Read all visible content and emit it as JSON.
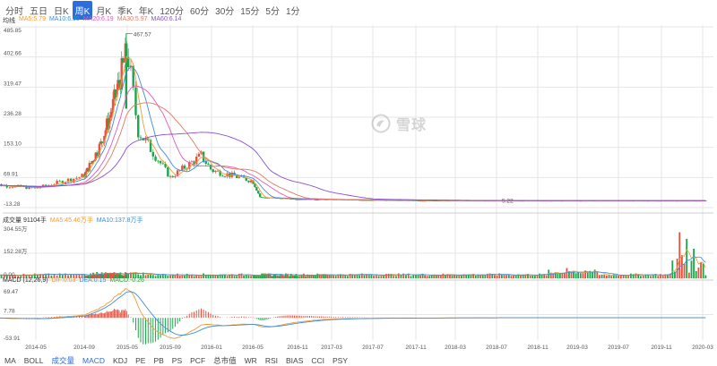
{
  "tabs": [
    {
      "label": "分时",
      "active": false
    },
    {
      "label": "五日",
      "active": false
    },
    {
      "label": "日K",
      "active": false
    },
    {
      "label": "周K",
      "active": true
    },
    {
      "label": "月K",
      "active": false
    },
    {
      "label": "季K",
      "active": false
    },
    {
      "label": "年K",
      "active": false
    },
    {
      "label": "120分",
      "active": false
    },
    {
      "label": "60分",
      "active": false
    },
    {
      "label": "30分",
      "active": false
    },
    {
      "label": "15分",
      "active": false
    },
    {
      "label": "5分",
      "active": false
    },
    {
      "label": "1分",
      "active": false
    }
  ],
  "price_legend": {
    "label": "均线",
    "items": [
      {
        "text": "MA5:5.79",
        "color": "#f29a3a"
      },
      {
        "text": "MA10:6.65",
        "color": "#3c8ed8"
      },
      {
        "text": "MA20:6.19",
        "color": "#e05ab8"
      },
      {
        "text": "MA30:5.97",
        "color": "#e07a60"
      },
      {
        "text": "MA60:6.14",
        "color": "#8a4fd0"
      }
    ]
  },
  "volume_legend": {
    "label": "成交量 91104手",
    "items": [
      {
        "text": "MA5:45.46万手",
        "color": "#f29a3a"
      },
      {
        "text": "MA10:137.8万手",
        "color": "#3c8ed8"
      }
    ]
  },
  "macd_legend": {
    "label": "MACD (12,26,9)",
    "items": [
      {
        "text": "DIF:0.03",
        "color": "#f29a3a"
      },
      {
        "text": "DEA:0.15",
        "color": "#3c8ed8"
      },
      {
        "text": "MACD:-0.26",
        "color": "#2aa844"
      }
    ]
  },
  "price_axis": [
    "485.85",
    "402.66",
    "319.47",
    "236.28",
    "153.10",
    "69.91",
    "-13.28"
  ],
  "price_peak_label": "467.57",
  "price_low_label": "5.22",
  "volume_axis": [
    "304.55万",
    "152.28万",
    "0.00"
  ],
  "macd_axis": [
    "69.47",
    "7.78",
    "-53.91"
  ],
  "x_axis": [
    "2014-05",
    "2014-09",
    "2015-05",
    "2015-09",
    "2016-01",
    "2016-05",
    "2016-11",
    "2017-03",
    "2017-07",
    "2017-11",
    "2018-03",
    "2018-07",
    "2018-11",
    "2019-03",
    "2019-07",
    "2019-11",
    "2020-03"
  ],
  "indicator_tabs": [
    {
      "label": "MA",
      "active": false
    },
    {
      "label": "BOLL",
      "active": false
    },
    {
      "label": "成交量",
      "active": true
    },
    {
      "label": "MACD",
      "active": true
    },
    {
      "label": "KDJ",
      "active": false
    },
    {
      "label": "PE",
      "active": false
    },
    {
      "label": "PB",
      "active": false
    },
    {
      "label": "PS",
      "active": false
    },
    {
      "label": "PCF",
      "active": false
    },
    {
      "label": "总市值",
      "active": false
    },
    {
      "label": "WR",
      "active": false
    },
    {
      "label": "RSI",
      "active": false
    },
    {
      "label": "BIAS",
      "active": false
    },
    {
      "label": "CCI",
      "active": false
    },
    {
      "label": "PSY",
      "active": false
    }
  ],
  "watermark": {
    "text": "雪球",
    "icon": "snowball-logo-icon"
  },
  "colors": {
    "up": "#e9503d",
    "down": "#18a84a",
    "active_tab": "#2a6ddb",
    "grid": "#e6e6e6"
  },
  "chart_data": {
    "type": "candlestick",
    "title": "",
    "ylim": [
      -13.28,
      485.85
    ],
    "peak": 467.57,
    "low": 5.22,
    "ma_legend": {
      "MA5": 5.79,
      "MA10": 6.65,
      "MA20": 6.19,
      "MA30": 5.97,
      "MA60": 6.14
    },
    "close_series": [
      {
        "x": "2014-01",
        "y": 52
      },
      {
        "x": "2014-05",
        "y": 40
      },
      {
        "x": "2014-09",
        "y": 75
      },
      {
        "x": "2014-12",
        "y": 160
      },
      {
        "x": "2015-02",
        "y": 250
      },
      {
        "x": "2015-05",
        "y": 420
      },
      {
        "x": "2015-06",
        "y": 200
      },
      {
        "x": "2015-09",
        "y": 70
      },
      {
        "x": "2015-12",
        "y": 130
      },
      {
        "x": "2016-01",
        "y": 90
      },
      {
        "x": "2016-05",
        "y": 60
      },
      {
        "x": "2016-06",
        "y": 15
      },
      {
        "x": "2016-11",
        "y": 10
      },
      {
        "x": "2017-11",
        "y": 6
      },
      {
        "x": "2019-03",
        "y": 6
      },
      {
        "x": "2020-03",
        "y": 5.8
      }
    ],
    "volume": {
      "ylim": [
        0,
        304.55
      ],
      "unit": "万",
      "max_label": 304.55,
      "mid_label": 152.28
    },
    "macd": {
      "ylim": [
        -53.91,
        69.47
      ],
      "DIF": 0.03,
      "DEA": 0.15,
      "MACD": -0.26
    }
  }
}
